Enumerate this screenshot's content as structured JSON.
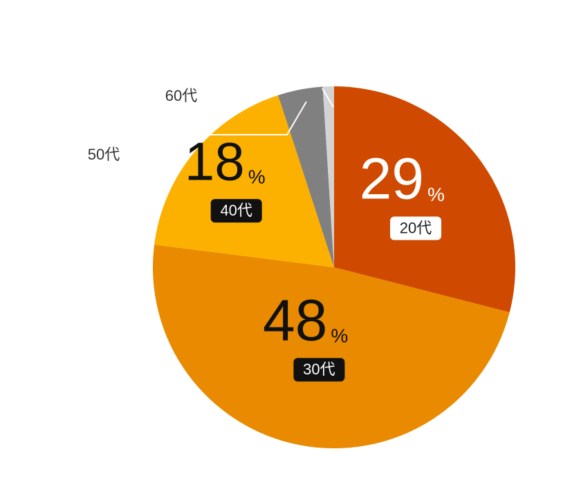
{
  "chart_data": {
    "type": "pie",
    "categories": [
      "20代",
      "30代",
      "40代",
      "50代",
      "60代"
    ],
    "values": [
      29,
      48,
      18,
      4,
      1
    ],
    "value_unit": "%",
    "colors": [
      "#cf4a00",
      "#e98a00",
      "#fcb100",
      "#808080",
      "#d3d3d3"
    ]
  }
}
